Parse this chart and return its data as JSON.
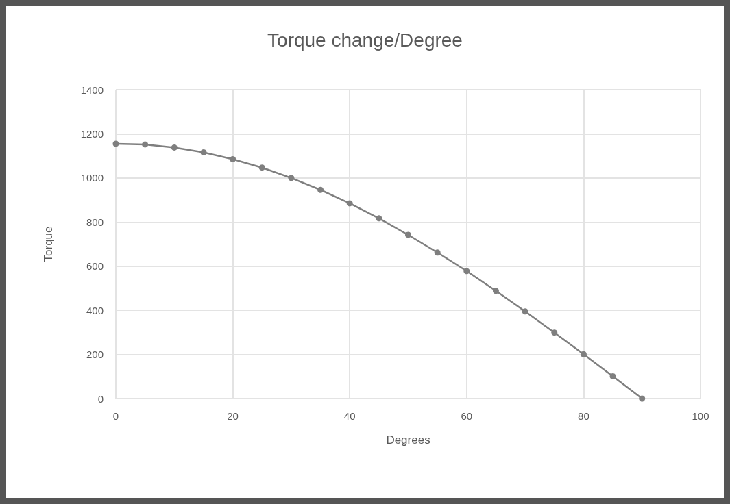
{
  "chart_data": {
    "type": "line",
    "title": "Torque change/Degree",
    "xlabel": "Degrees",
    "ylabel": "Torque",
    "x": [
      0,
      5,
      10,
      15,
      20,
      25,
      30,
      35,
      40,
      45,
      50,
      55,
      60,
      65,
      70,
      75,
      80,
      85,
      90
    ],
    "series": [
      {
        "color": "#7f7f7f",
        "values": [
          1155,
          1152,
          1138,
          1116,
          1085,
          1047,
          1000,
          946,
          885,
          817,
          742,
          662,
          578,
          488,
          395,
          299,
          201,
          101,
          0
        ]
      }
    ],
    "xlim": [
      0,
      100
    ],
    "xticks": [
      0,
      20,
      40,
      60,
      80,
      100
    ],
    "ylim": [
      0,
      1400
    ],
    "yticks": [
      0,
      200,
      400,
      600,
      800,
      1000,
      1200,
      1400
    ],
    "grid": true,
    "marker": "circle",
    "line_style": "solid"
  }
}
